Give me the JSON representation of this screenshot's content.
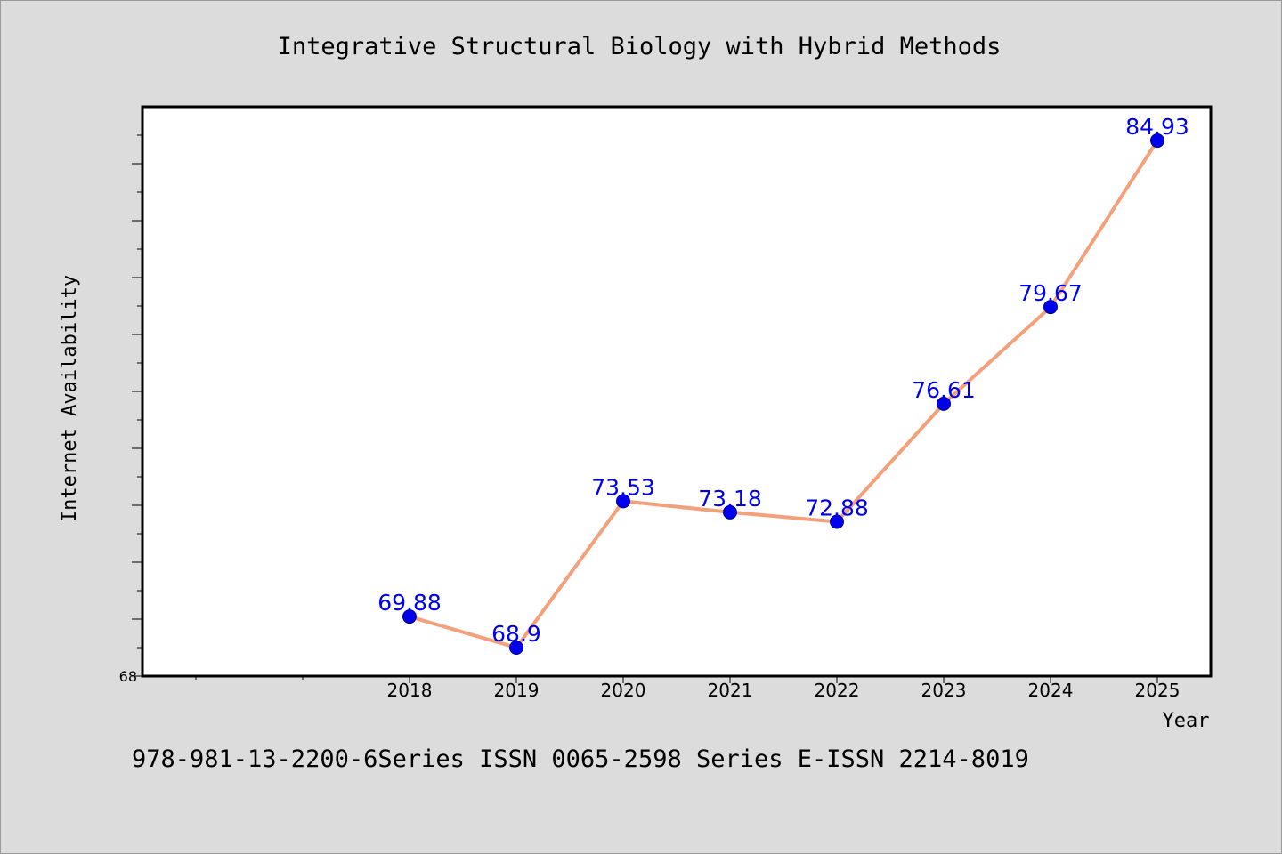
{
  "chart_data": {
    "type": "line",
    "title": "Integrative Structural Biology with Hybrid Methods",
    "xlabel": "Year",
    "ylabel": "Internet Availability",
    "categories": [
      "2018",
      "2019",
      "2020",
      "2021",
      "2022",
      "2023",
      "2024",
      "2025"
    ],
    "series": [
      {
        "values": [
          69.88,
          68.9,
          73.53,
          73.18,
          72.88,
          76.61,
          79.67,
          84.93
        ]
      }
    ],
    "data_labels": [
      "69.88",
      "68.9",
      "73.53",
      "73.18",
      "72.88",
      "76.61",
      "79.67",
      "84.93"
    ],
    "ylim": [
      68,
      86
    ],
    "ytick_labels": [
      "68"
    ],
    "grid": false,
    "legend": "none",
    "line_color": "#f4a07a",
    "marker_color": "#0000ee",
    "label_color": "#0000ee"
  },
  "footer": "978-981-13-2200-6Series ISSN 0065-2598 Series E-ISSN 2214-8019"
}
